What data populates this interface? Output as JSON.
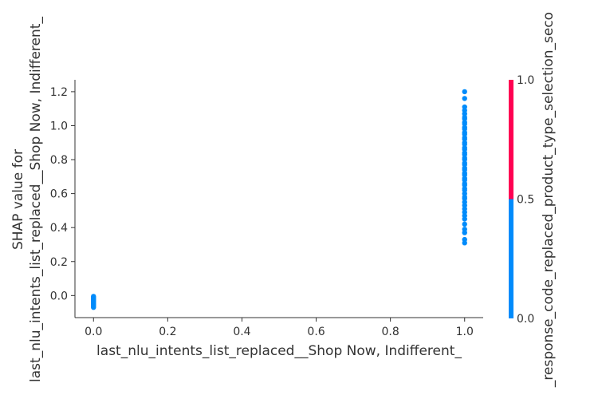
{
  "chart_data": {
    "type": "scatter",
    "xlabel": "last_nlu_intents_list_replaced__Shop Now, Indifferent_",
    "ylabel_lines": [
      "SHAP value for",
      "last_nlu_intents_list_replaced__Shop Now, Indifferent_"
    ],
    "colorbar_label": "_response_code_replaced_product_type_selection_seco",
    "xlim": [
      -0.05,
      1.05
    ],
    "ylim": [
      -0.13,
      1.27
    ],
    "x_ticks": [
      "0.0",
      "0.2",
      "0.4",
      "0.6",
      "0.8",
      "1.0"
    ],
    "y_ticks": [
      "0.0",
      "0.2",
      "0.4",
      "0.6",
      "0.8",
      "1.0",
      "1.2"
    ],
    "colorbar": {
      "ticks": [
        "0.0",
        "0.5",
        "1.0"
      ],
      "low_color": "#008bfb",
      "high_color": "#ff0052"
    },
    "point_color": "#008bfb",
    "series": [
      {
        "x": 0.0,
        "y": [
          -0.005,
          -0.01,
          -0.015,
          -0.02,
          -0.025,
          -0.03,
          -0.035,
          -0.04,
          -0.045,
          -0.05,
          -0.055,
          -0.06,
          -0.065,
          -0.07
        ]
      },
      {
        "x": 1.0,
        "y": [
          0.31,
          0.33,
          0.37,
          0.39,
          0.42,
          0.45,
          0.47,
          0.49,
          0.51,
          0.53,
          0.55,
          0.57,
          0.58,
          0.6,
          0.62,
          0.63,
          0.65,
          0.66,
          0.68,
          0.69,
          0.71,
          0.72,
          0.74,
          0.75,
          0.77,
          0.78,
          0.8,
          0.81,
          0.83,
          0.84,
          0.86,
          0.87,
          0.89,
          0.9,
          0.92,
          0.93,
          0.95,
          0.96,
          0.98,
          0.99,
          1.01,
          1.02,
          1.04,
          1.05,
          1.07,
          1.09,
          1.11,
          1.16,
          1.2
        ]
      }
    ]
  }
}
